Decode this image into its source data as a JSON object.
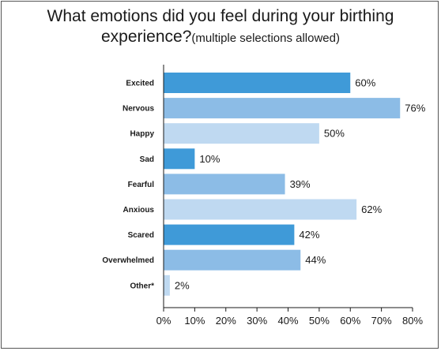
{
  "chart_data": {
    "type": "bar",
    "orientation": "horizontal",
    "title": "What emotions did you feel during your birthing experience?",
    "subtitle": "(multiple selections allowed)",
    "categories": [
      "Excited",
      "Nervous",
      "Happy",
      "Sad",
      "Fearful",
      "Anxious",
      "Scared",
      "Overwhelmed",
      "Other*"
    ],
    "values": [
      60,
      76,
      50,
      10,
      39,
      62,
      42,
      44,
      2
    ],
    "value_labels": [
      "60%",
      "76%",
      "50%",
      "10%",
      "39%",
      "62%",
      "42%",
      "44%",
      "2%"
    ],
    "xlim": [
      0,
      80
    ],
    "x_ticks": [
      0,
      10,
      20,
      30,
      40,
      50,
      60,
      70,
      80
    ],
    "x_tick_labels": [
      "0%",
      "10%",
      "20%",
      "30%",
      "40%",
      "50%",
      "60%",
      "70%",
      "80%"
    ],
    "xlabel": "",
    "ylabel": "",
    "grid": false,
    "bar_colors": [
      "#3f9ad8",
      "#8cbce6",
      "#bfd9f1"
    ]
  }
}
